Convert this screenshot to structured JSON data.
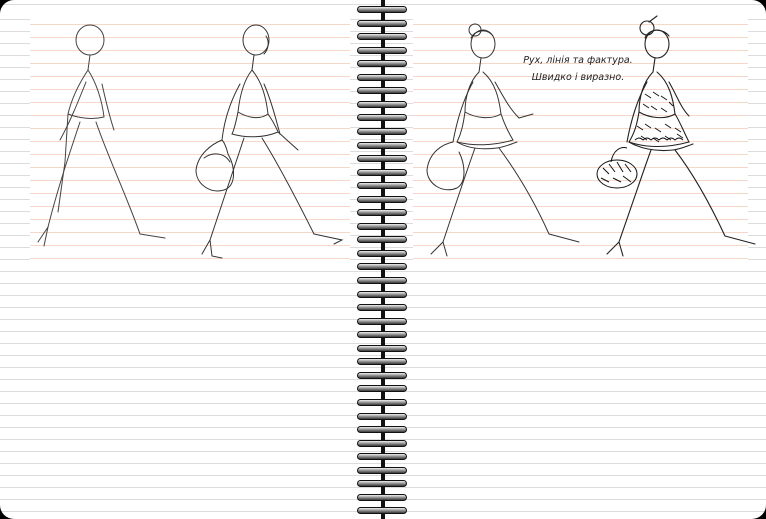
{
  "notebook": {
    "caption": {
      "line1": "Рух, лінія та фактура.",
      "line2": "Швидко і виразно."
    },
    "ring_count": 38,
    "colors": {
      "page": "#ffffff",
      "ruled_line": "#dcdcdc",
      "figure_ruled_line": "#f7d8c8",
      "sketch_stroke": "#333333",
      "background": "#000000"
    },
    "figures": [
      {
        "stage": "skeleton",
        "icon": "gesture-figure"
      },
      {
        "stage": "volume",
        "icon": "figure-with-bag"
      },
      {
        "stage": "outline",
        "icon": "dress-outline-figure"
      },
      {
        "stage": "texture",
        "icon": "textured-dress-figure"
      }
    ]
  }
}
